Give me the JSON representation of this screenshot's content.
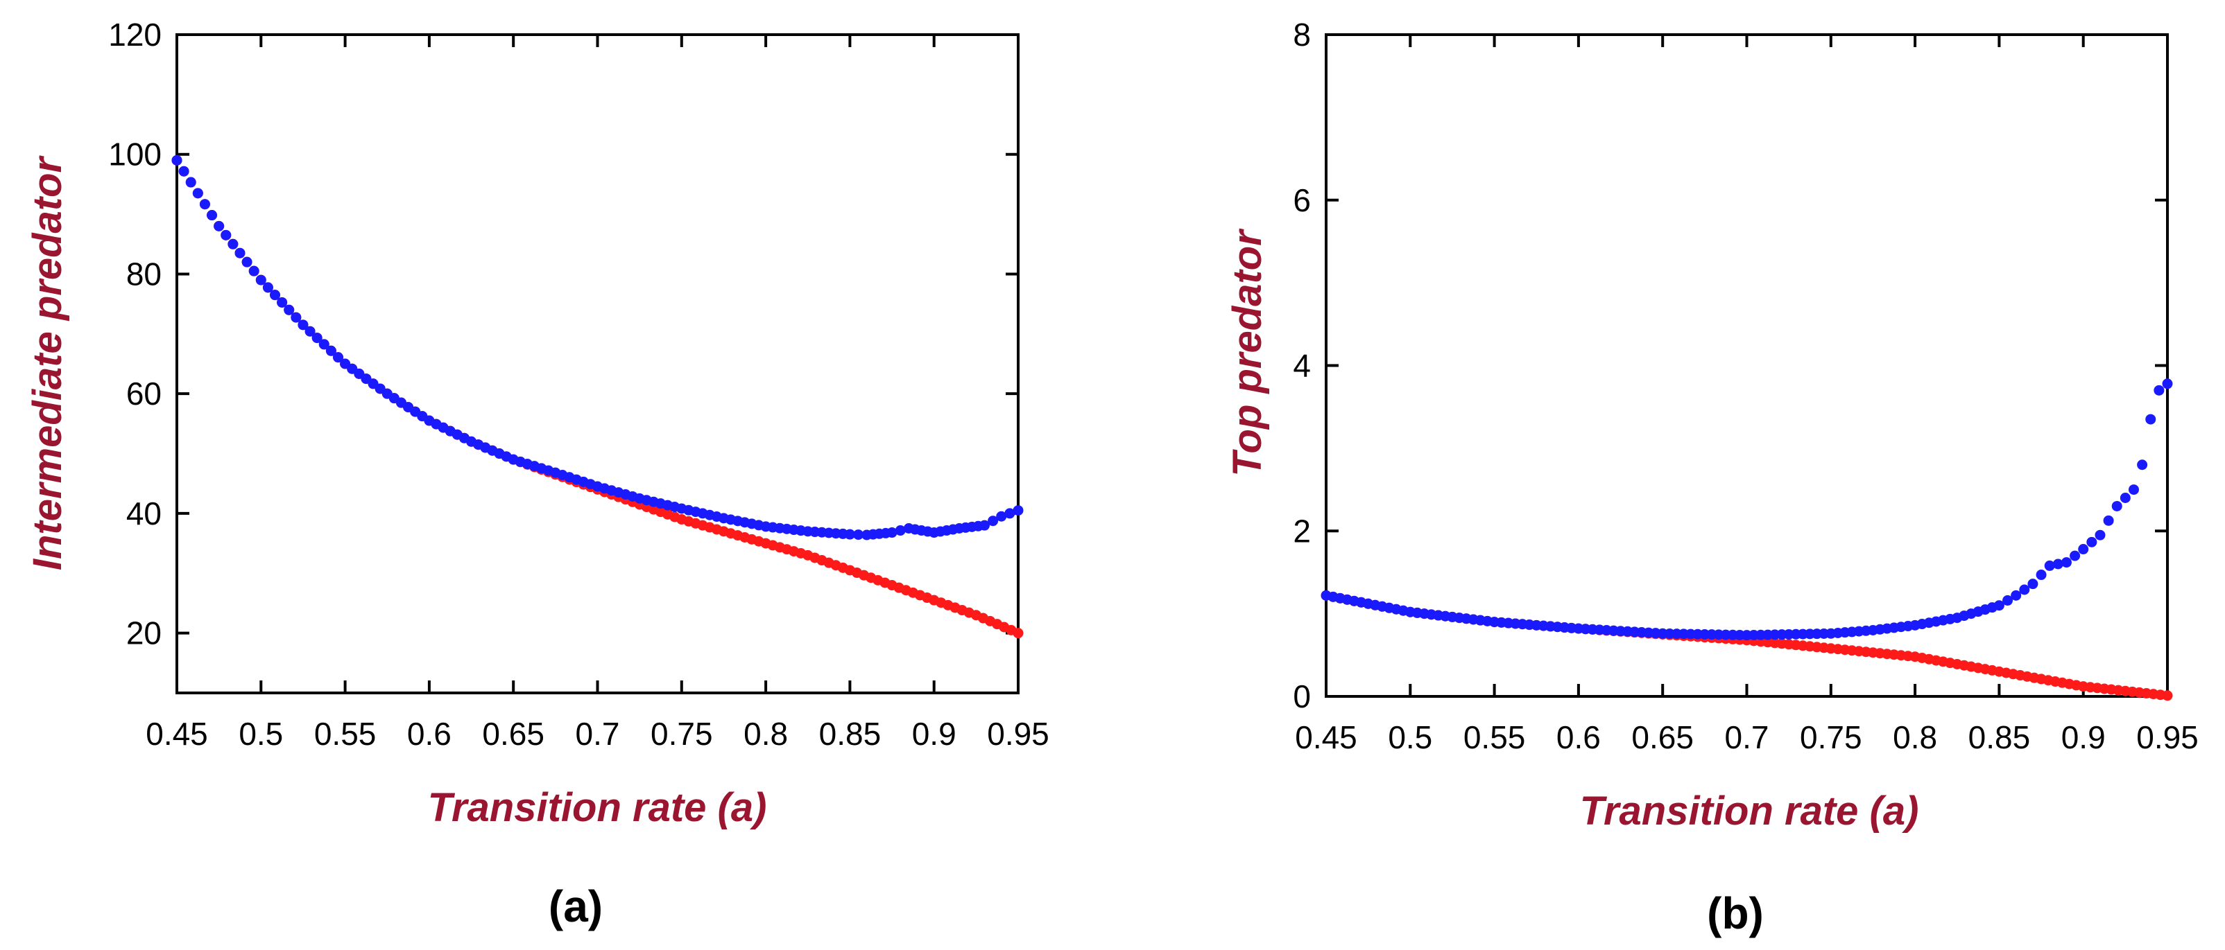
{
  "colors": {
    "series_red": "#ff1a1a",
    "series_blue": "#1a1aff",
    "axis_title": "#9a1530"
  },
  "chart_data": [
    {
      "type": "scatter",
      "panel_label": "(a)",
      "xlabel": "Transition rate (a)",
      "ylabel": "Intermediate predator",
      "xlim": [
        0.45,
        0.95
      ],
      "ylim": [
        10,
        120
      ],
      "x_ticks": [
        "0.45",
        "0.5",
        "0.55",
        "0.6",
        "0.65",
        "0.7",
        "0.75",
        "0.8",
        "0.85",
        "0.9",
        "0.95"
      ],
      "y_ticks": [
        "20",
        "40",
        "60",
        "80",
        "100",
        "120"
      ],
      "series": [
        {
          "name": "red",
          "color": "#ff1a1a",
          "points": [
            [
              0.45,
              99.0
            ],
            [
              0.475,
              88.0
            ],
            [
              0.5,
              79.0
            ],
            [
              0.525,
              71.5
            ],
            [
              0.55,
              65.0
            ],
            [
              0.575,
              60.0
            ],
            [
              0.6,
              55.5
            ],
            [
              0.625,
              52.0
            ],
            [
              0.65,
              49.0
            ],
            [
              0.675,
              46.5
            ],
            [
              0.7,
              44.0
            ],
            [
              0.725,
              41.5
            ],
            [
              0.75,
              39.0
            ],
            [
              0.775,
              37.0
            ],
            [
              0.8,
              35.0
            ],
            [
              0.825,
              33.0
            ],
            [
              0.85,
              30.5
            ],
            [
              0.875,
              28.0
            ],
            [
              0.9,
              25.5
            ],
            [
              0.925,
              23.0
            ],
            [
              0.95,
              20.0
            ]
          ]
        },
        {
          "name": "blue",
          "color": "#1a1aff",
          "points": [
            [
              0.45,
              99.0
            ],
            [
              0.475,
              88.0
            ],
            [
              0.5,
              79.0
            ],
            [
              0.525,
              71.5
            ],
            [
              0.55,
              65.0
            ],
            [
              0.575,
              60.0
            ],
            [
              0.6,
              55.5
            ],
            [
              0.625,
              52.0
            ],
            [
              0.65,
              49.0
            ],
            [
              0.675,
              46.8
            ],
            [
              0.7,
              44.5
            ],
            [
              0.725,
              42.5
            ],
            [
              0.75,
              40.8
            ],
            [
              0.775,
              39.2
            ],
            [
              0.8,
              37.8
            ],
            [
              0.825,
              37.0
            ],
            [
              0.85,
              36.5
            ],
            [
              0.86,
              36.4
            ],
            [
              0.875,
              36.8
            ],
            [
              0.885,
              37.5
            ],
            [
              0.9,
              36.8
            ],
            [
              0.915,
              37.5
            ],
            [
              0.93,
              38.0
            ],
            [
              0.94,
              39.5
            ],
            [
              0.95,
              40.5
            ]
          ]
        }
      ]
    },
    {
      "type": "scatter",
      "panel_label": "(b)",
      "xlabel": "Transition rate (a)",
      "ylabel": "Top predator",
      "xlim": [
        0.45,
        0.95
      ],
      "ylim": [
        0,
        8
      ],
      "x_ticks": [
        "0.45",
        "0.5",
        "0.55",
        "0.6",
        "0.65",
        "0.7",
        "0.75",
        "0.8",
        "0.85",
        "0.9",
        "0.95"
      ],
      "y_ticks": [
        "0",
        "2",
        "4",
        "6",
        "8"
      ],
      "series": [
        {
          "name": "red",
          "color": "#ff1a1a",
          "points": [
            [
              0.45,
              1.22
            ],
            [
              0.5,
              1.02
            ],
            [
              0.55,
              0.9
            ],
            [
              0.6,
              0.82
            ],
            [
              0.65,
              0.75
            ],
            [
              0.7,
              0.68
            ],
            [
              0.75,
              0.58
            ],
            [
              0.8,
              0.48
            ],
            [
              0.85,
              0.3
            ],
            [
              0.9,
              0.12
            ],
            [
              0.95,
              0.01
            ]
          ]
        },
        {
          "name": "blue",
          "color": "#1a1aff",
          "points": [
            [
              0.45,
              1.22
            ],
            [
              0.5,
              1.02
            ],
            [
              0.55,
              0.9
            ],
            [
              0.6,
              0.82
            ],
            [
              0.65,
              0.76
            ],
            [
              0.7,
              0.74
            ],
            [
              0.75,
              0.76
            ],
            [
              0.775,
              0.8
            ],
            [
              0.8,
              0.86
            ],
            [
              0.825,
              0.95
            ],
            [
              0.85,
              1.1
            ],
            [
              0.86,
              1.22
            ],
            [
              0.87,
              1.36
            ],
            [
              0.88,
              1.58
            ],
            [
              0.89,
              1.62
            ],
            [
              0.9,
              1.78
            ],
            [
              0.91,
              1.95
            ],
            [
              0.92,
              2.3
            ],
            [
              0.93,
              2.5
            ],
            [
              0.935,
              2.8
            ],
            [
              0.94,
              3.35
            ],
            [
              0.945,
              3.7
            ],
            [
              0.95,
              3.78
            ]
          ]
        }
      ]
    }
  ]
}
